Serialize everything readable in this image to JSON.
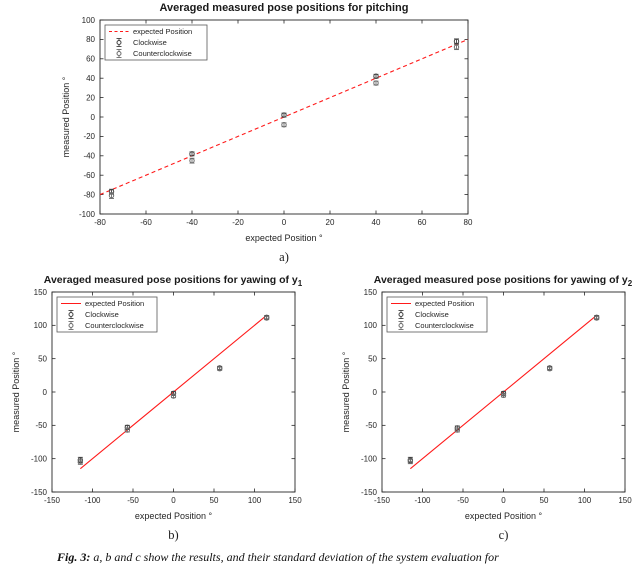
{
  "caption": {
    "label": "Fig. 3:",
    "text": "a, b and c show the results, and their standard deviation of the system evaluation for"
  },
  "chart_data": [
    {
      "type": "scatter",
      "panel_label": "a)",
      "title": "Averaged measured pose positions for pitching",
      "title_sub": "",
      "xlabel": "expected Position °",
      "ylabel": "measured Position °",
      "xlim": [
        -80,
        80
      ],
      "ylim": [
        -100,
        100
      ],
      "xticks": [
        -80,
        -60,
        -40,
        -20,
        0,
        20,
        40,
        60,
        80
      ],
      "yticks": [
        -100,
        -80,
        -60,
        -40,
        -20,
        0,
        20,
        40,
        60,
        80,
        100
      ],
      "grid": false,
      "legend_position": "top-left",
      "legend_entries": [
        "expected Position",
        "Clockwise",
        "Counterclockwise"
      ],
      "expected_line": {
        "name": "expected Position",
        "color": "#ff1a1a",
        "dashed": true,
        "x": [
          -80,
          80
        ],
        "y": [
          -80,
          80
        ]
      },
      "series": [
        {
          "name": "Clockwise",
          "marker": "circle",
          "color": "#404040",
          "x": [
            -75,
            -40,
            0,
            40,
            75
          ],
          "y": [
            -77,
            -38,
            2,
            42,
            78
          ],
          "yerr": [
            2.5,
            2,
            2,
            2,
            2.5
          ]
        },
        {
          "name": "Counterclockwise",
          "marker": "circle",
          "color": "#6b6b6b",
          "x": [
            -75,
            -40,
            0,
            40,
            75
          ],
          "y": [
            -81,
            -45,
            -8,
            35,
            72
          ],
          "yerr": [
            3,
            2.5,
            2,
            2,
            2.5
          ]
        }
      ]
    },
    {
      "type": "scatter",
      "panel_label": "b)",
      "title": "Averaged measured pose positions for yawing of y",
      "title_sub": "1",
      "xlabel": "expected Position °",
      "ylabel": "measured Position °",
      "xlim": [
        -150,
        150
      ],
      "ylim": [
        -150,
        150
      ],
      "xticks": [
        -150,
        -100,
        -50,
        0,
        50,
        100,
        150
      ],
      "yticks": [
        -150,
        -100,
        -50,
        0,
        50,
        100,
        150
      ],
      "grid": false,
      "legend_position": "top-left",
      "legend_entries": [
        "expected Position",
        "Clockwise",
        "Counterclockwise"
      ],
      "expected_line": {
        "name": "expected Position",
        "color": "#ff1a1a",
        "dashed": false,
        "x": [
          -115,
          115
        ],
        "y": [
          -115,
          115
        ]
      },
      "series": [
        {
          "name": "Clockwise",
          "marker": "circle",
          "color": "#404040",
          "x": [
            -115,
            -57,
            0,
            57,
            115
          ],
          "y": [
            -102,
            -53,
            -2,
            36,
            112
          ],
          "yerr": [
            4,
            3,
            2.5,
            2.5,
            2.5
          ]
        },
        {
          "name": "Counterclockwise",
          "marker": "circle",
          "color": "#6b6b6b",
          "x": [
            -115,
            -57,
            0,
            57,
            115
          ],
          "y": [
            -105,
            -57,
            -6,
            35,
            111
          ],
          "yerr": [
            3.5,
            3,
            2.5,
            2.5,
            2.5
          ]
        }
      ]
    },
    {
      "type": "scatter",
      "panel_label": "c)",
      "title": "Averaged measured pose positions for yawing of y",
      "title_sub": "2",
      "xlabel": "expected Position °",
      "ylabel": "measured Position °",
      "xlim": [
        -150,
        150
      ],
      "ylim": [
        -150,
        150
      ],
      "xticks": [
        -150,
        -100,
        -50,
        0,
        50,
        100,
        150
      ],
      "yticks": [
        -150,
        -100,
        -50,
        0,
        50,
        100,
        150
      ],
      "grid": false,
      "legend_position": "top-left",
      "legend_entries": [
        "expected Position",
        "Clockwise",
        "Counterclockwise"
      ],
      "expected_line": {
        "name": "expected Position",
        "color": "#ff1a1a",
        "dashed": false,
        "x": [
          -115,
          115
        ],
        "y": [
          -115,
          115
        ]
      },
      "series": [
        {
          "name": "Clockwise",
          "marker": "circle",
          "color": "#404040",
          "x": [
            -115,
            -57,
            0,
            57,
            115
          ],
          "y": [
            -102,
            -54,
            -2,
            36,
            112
          ],
          "yerr": [
            4,
            3,
            2.5,
            2.5,
            2.5
          ]
        },
        {
          "name": "Counterclockwise",
          "marker": "circle",
          "color": "#6b6b6b",
          "x": [
            -115,
            -57,
            0,
            57,
            115
          ],
          "y": [
            -104,
            -57,
            -5,
            35,
            111
          ],
          "yerr": [
            3.5,
            3,
            2.5,
            2.5,
            2.5
          ]
        }
      ]
    }
  ]
}
